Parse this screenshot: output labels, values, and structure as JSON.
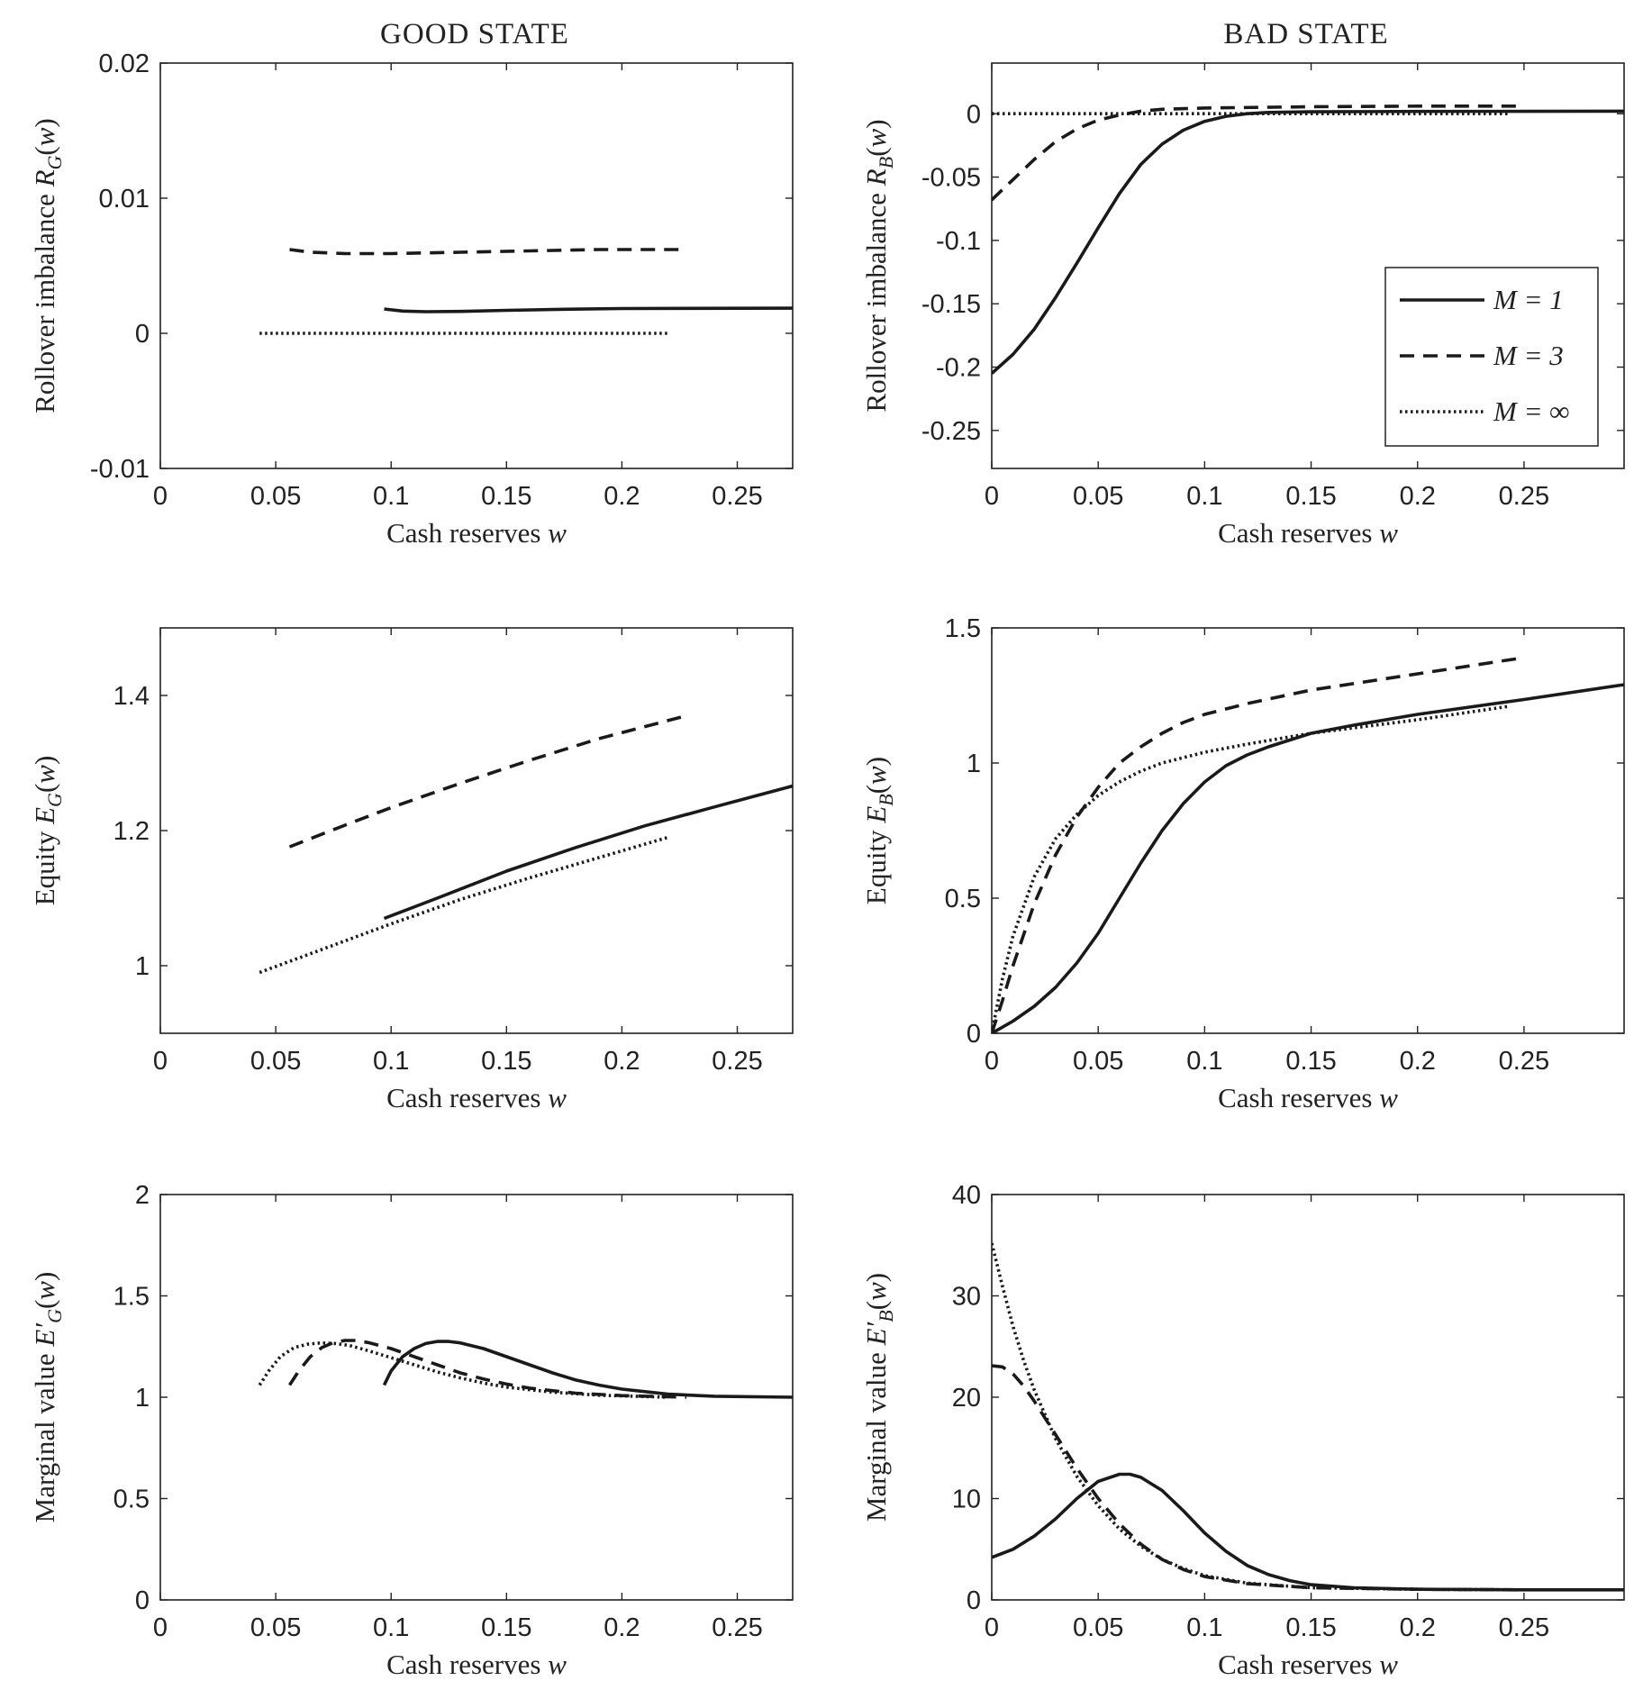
{
  "column_titles": [
    "GOOD STATE",
    "BAD STATE"
  ],
  "legend": {
    "placement": "right, inside top-right panel",
    "entries": [
      {
        "style": "solid",
        "label": "M = 1"
      },
      {
        "style": "dashed",
        "label": "M = 3"
      },
      {
        "style": "dotted",
        "label": "M = ∞"
      }
    ]
  },
  "chart_data": [
    {
      "type": "line",
      "xlabel": "Cash reserves w",
      "ylabel": "Rollover imbalance R_G(w)",
      "ylabel_parts": {
        "main": "Rollover imbalance R",
        "sub": "G",
        "tail": "(w)"
      },
      "xlim": [
        0,
        0.274
      ],
      "ylim": [
        -0.01,
        0.02
      ],
      "xticks": [
        "0",
        "0.05",
        "0.1",
        "0.15",
        "0.2",
        "0.25"
      ],
      "xtick_values": [
        0,
        0.05,
        0.1,
        0.15,
        0.2,
        0.25
      ],
      "yticks": [
        "-0.01",
        "0",
        "0.01",
        "0.02"
      ],
      "ytick_values": [
        -0.01,
        0,
        0.01,
        0.02
      ],
      "series": [
        {
          "style": "solid",
          "x": [
            0.097,
            0.105,
            0.115,
            0.13,
            0.15,
            0.175,
            0.2,
            0.23,
            0.274
          ],
          "y": [
            0.0018,
            0.00165,
            0.0016,
            0.00162,
            0.0017,
            0.00178,
            0.00183,
            0.00185,
            0.00186
          ]
        },
        {
          "style": "dashed",
          "x": [
            0.056,
            0.065,
            0.08,
            0.1,
            0.13,
            0.16,
            0.19,
            0.228
          ],
          "y": [
            0.0062,
            0.006,
            0.0059,
            0.0059,
            0.006,
            0.0061,
            0.0062,
            0.0062
          ]
        },
        {
          "style": "dotted",
          "x": [
            0.043,
            0.1,
            0.15,
            0.22
          ],
          "y": [
            0.0,
            0.0,
            0.0,
            0.0
          ]
        }
      ]
    },
    {
      "type": "line",
      "xlabel": "Cash reserves w",
      "ylabel": "Rollover imbalance R_B(w)",
      "ylabel_parts": {
        "main": "Rollover imbalance R",
        "sub": "B",
        "tail": "(w)"
      },
      "xlim": [
        0,
        0.297
      ],
      "ylim": [
        -0.28,
        0.04
      ],
      "xticks": [
        "0",
        "0.05",
        "0.1",
        "0.15",
        "0.2",
        "0.25"
      ],
      "xtick_values": [
        0,
        0.05,
        0.1,
        0.15,
        0.2,
        0.25
      ],
      "yticks": [
        "-0.25",
        "-0.2",
        "-0.15",
        "-0.1",
        "-0.05",
        "0"
      ],
      "ytick_values": [
        -0.25,
        -0.2,
        -0.15,
        -0.1,
        -0.05,
        0
      ],
      "series": [
        {
          "style": "solid",
          "x": [
            0,
            0.01,
            0.02,
            0.03,
            0.04,
            0.05,
            0.06,
            0.07,
            0.08,
            0.09,
            0.1,
            0.11,
            0.12,
            0.13,
            0.15,
            0.2,
            0.25,
            0.297
          ],
          "y": [
            -0.205,
            -0.19,
            -0.17,
            -0.145,
            -0.118,
            -0.09,
            -0.063,
            -0.04,
            -0.024,
            -0.013,
            -0.006,
            -0.002,
            0.0,
            0.001,
            0.0015,
            0.0018,
            0.0019,
            0.002
          ]
        },
        {
          "style": "dashed",
          "x": [
            0,
            0.01,
            0.02,
            0.03,
            0.04,
            0.05,
            0.06,
            0.07,
            0.08,
            0.1,
            0.15,
            0.2,
            0.25
          ],
          "y": [
            -0.068,
            -0.052,
            -0.036,
            -0.022,
            -0.012,
            -0.005,
            -0.001,
            0.002,
            0.0035,
            0.0045,
            0.0055,
            0.006,
            0.006
          ]
        },
        {
          "style": "dotted",
          "x": [
            0,
            0.1,
            0.2,
            0.243
          ],
          "y": [
            0.0,
            0.0,
            0.0,
            0.0
          ]
        }
      ]
    },
    {
      "type": "line",
      "xlabel": "Cash reserves w",
      "ylabel": "Equity E_G(w)",
      "ylabel_parts": {
        "main": "Equity E",
        "sub": "G",
        "tail": "(w)"
      },
      "xlim": [
        0,
        0.274
      ],
      "ylim": [
        0.9,
        1.5
      ],
      "xticks": [
        "0",
        "0.05",
        "0.1",
        "0.15",
        "0.2",
        "0.25"
      ],
      "xtick_values": [
        0,
        0.05,
        0.1,
        0.15,
        0.2,
        0.25
      ],
      "yticks": [
        "1",
        "1.2",
        "1.4"
      ],
      "ytick_values": [
        1,
        1.2,
        1.4
      ],
      "series": [
        {
          "style": "solid",
          "x": [
            0.097,
            0.12,
            0.15,
            0.18,
            0.21,
            0.24,
            0.274
          ],
          "y": [
            1.07,
            1.1,
            1.14,
            1.175,
            1.207,
            1.235,
            1.266
          ]
        },
        {
          "style": "dashed",
          "x": [
            0.056,
            0.08,
            0.1,
            0.13,
            0.16,
            0.19,
            0.228
          ],
          "y": [
            1.176,
            1.208,
            1.234,
            1.27,
            1.304,
            1.336,
            1.37
          ]
        },
        {
          "style": "dotted",
          "x": [
            0.043,
            0.07,
            0.1,
            0.13,
            0.16,
            0.19,
            0.22
          ],
          "y": [
            0.99,
            1.024,
            1.062,
            1.098,
            1.13,
            1.16,
            1.19
          ]
        }
      ]
    },
    {
      "type": "line",
      "xlabel": "Cash reserves w",
      "ylabel": "Equity E_B(w)",
      "ylabel_parts": {
        "main": "Equity E",
        "sub": "B",
        "tail": "(w)"
      },
      "xlim": [
        0,
        0.297
      ],
      "ylim": [
        0,
        1.5
      ],
      "xticks": [
        "0",
        "0.05",
        "0.1",
        "0.15",
        "0.2",
        "0.25"
      ],
      "xtick_values": [
        0,
        0.05,
        0.1,
        0.15,
        0.2,
        0.25
      ],
      "yticks": [
        "0",
        "0.5",
        "1",
        "1.5"
      ],
      "ytick_values": [
        0,
        0.5,
        1,
        1.5
      ],
      "series": [
        {
          "style": "solid",
          "x": [
            0,
            0.01,
            0.02,
            0.03,
            0.04,
            0.05,
            0.06,
            0.07,
            0.08,
            0.09,
            0.1,
            0.11,
            0.12,
            0.13,
            0.15,
            0.17,
            0.2,
            0.25,
            0.297
          ],
          "y": [
            0,
            0.045,
            0.1,
            0.17,
            0.26,
            0.37,
            0.5,
            0.63,
            0.75,
            0.85,
            0.93,
            0.99,
            1.03,
            1.06,
            1.11,
            1.14,
            1.18,
            1.235,
            1.29
          ]
        },
        {
          "style": "dashed",
          "x": [
            0,
            0.005,
            0.01,
            0.02,
            0.03,
            0.04,
            0.05,
            0.06,
            0.07,
            0.08,
            0.09,
            0.1,
            0.12,
            0.15,
            0.2,
            0.25
          ],
          "y": [
            0,
            0.12,
            0.25,
            0.48,
            0.66,
            0.8,
            0.91,
            1.0,
            1.06,
            1.11,
            1.15,
            1.18,
            1.22,
            1.27,
            1.33,
            1.39
          ]
        },
        {
          "style": "dotted",
          "x": [
            0,
            0.005,
            0.01,
            0.02,
            0.03,
            0.04,
            0.05,
            0.06,
            0.07,
            0.08,
            0.1,
            0.12,
            0.15,
            0.2,
            0.243
          ],
          "y": [
            0,
            0.2,
            0.36,
            0.58,
            0.72,
            0.81,
            0.88,
            0.93,
            0.97,
            1.0,
            1.04,
            1.07,
            1.11,
            1.16,
            1.21
          ]
        }
      ]
    },
    {
      "type": "line",
      "xlabel": "Cash reserves w",
      "ylabel": "Marginal value E'_G(w)",
      "ylabel_parts": {
        "main": "Marginal value E",
        "sub": "G",
        "tail": "(w)",
        "prime": true
      },
      "xlim": [
        0,
        0.274
      ],
      "ylim": [
        0,
        2
      ],
      "xticks": [
        "0",
        "0.05",
        "0.1",
        "0.15",
        "0.2",
        "0.25"
      ],
      "xtick_values": [
        0,
        0.05,
        0.1,
        0.15,
        0.2,
        0.25
      ],
      "yticks": [
        "0",
        "0.5",
        "1",
        "1.5",
        "2"
      ],
      "ytick_values": [
        0,
        0.5,
        1,
        1.5,
        2
      ],
      "series": [
        {
          "style": "solid",
          "x": [
            0.097,
            0.1,
            0.105,
            0.11,
            0.115,
            0.12,
            0.125,
            0.13,
            0.14,
            0.15,
            0.16,
            0.17,
            0.18,
            0.19,
            0.2,
            0.22,
            0.24,
            0.274
          ],
          "y": [
            1.06,
            1.13,
            1.2,
            1.24,
            1.265,
            1.275,
            1.275,
            1.268,
            1.24,
            1.2,
            1.16,
            1.12,
            1.085,
            1.06,
            1.04,
            1.015,
            1.005,
            1.0
          ]
        },
        {
          "style": "dashed",
          "x": [
            0.056,
            0.06,
            0.065,
            0.07,
            0.075,
            0.08,
            0.085,
            0.09,
            0.1,
            0.11,
            0.12,
            0.13,
            0.14,
            0.15,
            0.16,
            0.18,
            0.2,
            0.228
          ],
          "y": [
            1.06,
            1.13,
            1.2,
            1.245,
            1.27,
            1.28,
            1.28,
            1.27,
            1.24,
            1.2,
            1.16,
            1.12,
            1.09,
            1.065,
            1.045,
            1.02,
            1.008,
            1.0
          ]
        },
        {
          "style": "dotted",
          "x": [
            0.043,
            0.047,
            0.052,
            0.058,
            0.064,
            0.07,
            0.076,
            0.082,
            0.09,
            0.1,
            0.11,
            0.12,
            0.13,
            0.14,
            0.15,
            0.17,
            0.19,
            0.22
          ],
          "y": [
            1.06,
            1.13,
            1.2,
            1.245,
            1.262,
            1.268,
            1.265,
            1.255,
            1.23,
            1.195,
            1.16,
            1.125,
            1.095,
            1.07,
            1.05,
            1.025,
            1.01,
            1.0
          ]
        }
      ]
    },
    {
      "type": "line",
      "xlabel": "Cash reserves w",
      "ylabel": "Marginal value E'_B(w)",
      "ylabel_parts": {
        "main": "Marginal value E",
        "sub": "B",
        "tail": "(w)",
        "prime": true
      },
      "xlim": [
        0,
        0.297
      ],
      "ylim": [
        0,
        40
      ],
      "xticks": [
        "0",
        "0.05",
        "0.1",
        "0.15",
        "0.2",
        "0.25"
      ],
      "xtick_values": [
        0,
        0.05,
        0.1,
        0.15,
        0.2,
        0.25
      ],
      "yticks": [
        "0",
        "10",
        "20",
        "30",
        "40"
      ],
      "ytick_values": [
        0,
        10,
        20,
        30,
        40
      ],
      "series": [
        {
          "style": "solid",
          "x": [
            0,
            0.01,
            0.02,
            0.03,
            0.04,
            0.05,
            0.06,
            0.065,
            0.07,
            0.08,
            0.09,
            0.1,
            0.11,
            0.12,
            0.13,
            0.14,
            0.15,
            0.17,
            0.2,
            0.25,
            0.297
          ],
          "y": [
            4.2,
            5.0,
            6.3,
            8.0,
            10.0,
            11.7,
            12.4,
            12.4,
            12.1,
            10.8,
            8.8,
            6.6,
            4.8,
            3.4,
            2.5,
            1.9,
            1.5,
            1.2,
            1.05,
            1.0,
            1.0
          ]
        },
        {
          "style": "dashed",
          "x": [
            0,
            0.005,
            0.01,
            0.015,
            0.02,
            0.03,
            0.04,
            0.05,
            0.06,
            0.07,
            0.08,
            0.09,
            0.1,
            0.12,
            0.15,
            0.2,
            0.25
          ],
          "y": [
            23.1,
            23.0,
            22.3,
            21.1,
            19.6,
            16.3,
            13.0,
            10.0,
            7.5,
            5.5,
            4.0,
            3.0,
            2.3,
            1.6,
            1.2,
            1.05,
            1.0
          ]
        },
        {
          "style": "dotted",
          "x": [
            0,
            0.005,
            0.01,
            0.015,
            0.02,
            0.03,
            0.04,
            0.05,
            0.06,
            0.07,
            0.08,
            0.09,
            0.1,
            0.12,
            0.15,
            0.2,
            0.243
          ],
          "y": [
            35.2,
            31.0,
            27.0,
            23.6,
            20.7,
            15.9,
            12.2,
            9.3,
            7.0,
            5.3,
            4.0,
            3.1,
            2.4,
            1.65,
            1.2,
            1.05,
            1.0
          ]
        }
      ]
    }
  ]
}
